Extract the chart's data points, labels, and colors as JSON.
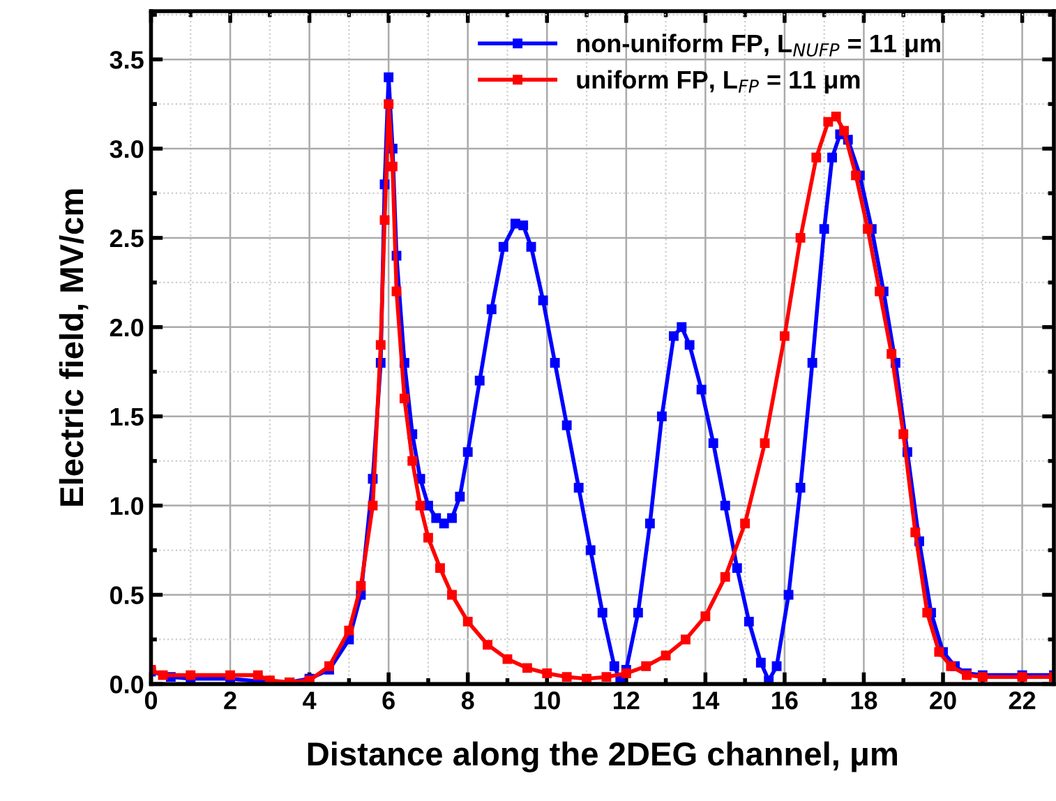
{
  "chart_data": {
    "type": "line",
    "xlabel": "Distance along the 2DEG channel, μm",
    "ylabel": "Electric field, MV/cm",
    "xlim": [
      0,
      22.8
    ],
    "ylim": [
      0,
      3.77
    ],
    "xticks": [
      0,
      2,
      4,
      6,
      8,
      10,
      12,
      14,
      16,
      18,
      20,
      22
    ],
    "yticks": [
      {
        "value": 0,
        "label": "0.0"
      },
      0.5,
      {
        "value": 1,
        "label": "1.0"
      },
      1.5,
      {
        "value": 2,
        "label": "2.0"
      },
      2.5,
      {
        "value": 3,
        "label": "3.0"
      },
      3.5
    ],
    "grid": true,
    "legend": "top",
    "marker": "square",
    "line_style": "solid",
    "series": [
      {
        "name": "non-uniform FP, L$_{NUFP}$ = 11 μm",
        "color": "#0000ff",
        "x": [
          0,
          0.5,
          1,
          2,
          3,
          3.5,
          4,
          4.5,
          5,
          5.3,
          5.6,
          5.8,
          5.9,
          6.0,
          6.1,
          6.2,
          6.4,
          6.6,
          6.8,
          7.0,
          7.2,
          7.4,
          7.6,
          7.8,
          8.0,
          8.3,
          8.6,
          8.9,
          9.2,
          9.4,
          9.6,
          9.9,
          10.2,
          10.5,
          10.8,
          11.1,
          11.4,
          11.7,
          11.85,
          12.0,
          12.3,
          12.6,
          12.9,
          13.2,
          13.4,
          13.6,
          13.9,
          14.2,
          14.5,
          14.8,
          15.1,
          15.4,
          15.6,
          15.8,
          16.1,
          16.4,
          16.7,
          17.0,
          17.2,
          17.4,
          17.6,
          17.9,
          18.2,
          18.5,
          18.8,
          19.1,
          19.4,
          19.7,
          20.0,
          20.3,
          20.6,
          21,
          22,
          22.8
        ],
        "values": [
          0.07,
          0.04,
          0.03,
          0.03,
          0.01,
          0.01,
          0.03,
          0.08,
          0.25,
          0.5,
          1.15,
          1.8,
          2.8,
          3.4,
          3.0,
          2.4,
          1.8,
          1.4,
          1.15,
          1.0,
          0.93,
          0.9,
          0.93,
          1.05,
          1.3,
          1.7,
          2.1,
          2.45,
          2.58,
          2.57,
          2.45,
          2.15,
          1.8,
          1.45,
          1.1,
          0.75,
          0.4,
          0.1,
          0.02,
          0.08,
          0.4,
          0.9,
          1.5,
          1.95,
          2.0,
          1.9,
          1.65,
          1.35,
          1.0,
          0.65,
          0.35,
          0.12,
          0.02,
          0.1,
          0.5,
          1.1,
          1.8,
          2.55,
          2.95,
          3.08,
          3.05,
          2.85,
          2.55,
          2.2,
          1.8,
          1.3,
          0.8,
          0.4,
          0.18,
          0.1,
          0.06,
          0.05,
          0.05,
          0.05
        ]
      },
      {
        "name": "uniform FP, L$_{FP}$ = 11 μm",
        "color": "#ff0000",
        "x": [
          0,
          0.3,
          1,
          2,
          2.7,
          3,
          3.5,
          4,
          4.5,
          5,
          5.3,
          5.6,
          5.8,
          5.9,
          6.0,
          6.1,
          6.2,
          6.4,
          6.6,
          6.8,
          7.0,
          7.3,
          7.6,
          8.0,
          8.5,
          9,
          9.5,
          10,
          10.5,
          11,
          11.5,
          12,
          12.5,
          13,
          13.5,
          14,
          14.5,
          15,
          15.5,
          16,
          16.4,
          16.8,
          17.1,
          17.3,
          17.5,
          17.8,
          18.1,
          18.4,
          18.7,
          19.0,
          19.3,
          19.6,
          19.9,
          20.2,
          20.6,
          21,
          22,
          22.8
        ],
        "values": [
          0.08,
          0.05,
          0.05,
          0.05,
          0.05,
          0.02,
          0.01,
          0.02,
          0.1,
          0.3,
          0.55,
          1.0,
          1.9,
          2.6,
          3.25,
          2.9,
          2.2,
          1.6,
          1.25,
          1.0,
          0.82,
          0.65,
          0.5,
          0.35,
          0.22,
          0.14,
          0.09,
          0.06,
          0.04,
          0.03,
          0.04,
          0.06,
          0.1,
          0.16,
          0.25,
          0.38,
          0.6,
          0.9,
          1.35,
          1.95,
          2.5,
          2.95,
          3.15,
          3.18,
          3.1,
          2.85,
          2.55,
          2.2,
          1.85,
          1.4,
          0.85,
          0.4,
          0.18,
          0.1,
          0.05,
          0.04,
          0.04,
          0.04
        ]
      }
    ]
  }
}
